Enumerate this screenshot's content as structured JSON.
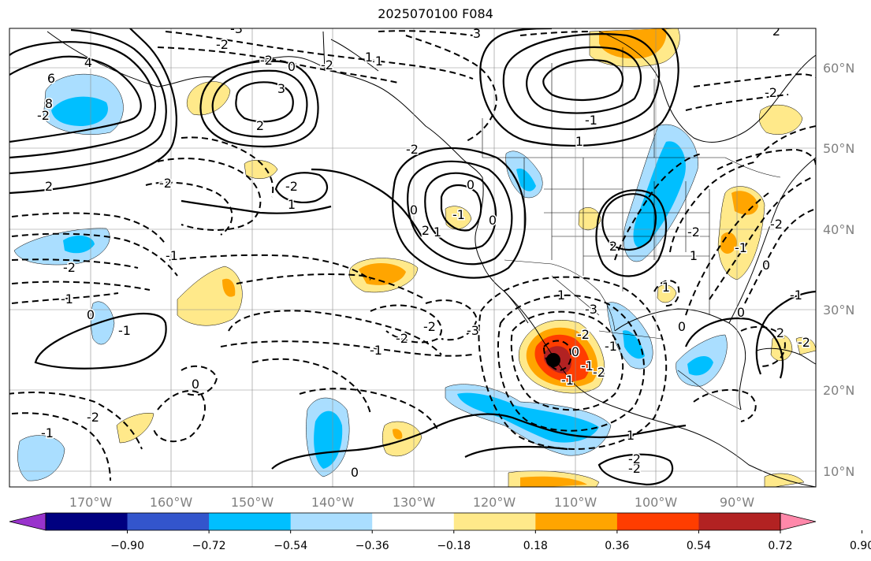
{
  "title": "2025070100 F084",
  "lon_labels": [
    "170°W",
    "160°W",
    "150°W",
    "140°W",
    "130°W",
    "120°W",
    "110°W",
    "100°W",
    "90°W"
  ],
  "lat_labels": [
    "60°N",
    "50°N",
    "40°N",
    "30°N",
    "20°N",
    "10°N"
  ],
  "colorbar": {
    "colors": [
      "#9933cc",
      "#000080",
      "#3355cc",
      "#00bfff",
      "#aadeff",
      "#ffffff",
      "#ffe98a",
      "#ffa500",
      "#ff3d00",
      "#b22222",
      "#ff88aa"
    ],
    "tick_labels": [
      "−0.90",
      "−0.72",
      "−0.54",
      "−0.36",
      "−0.18",
      "0.18",
      "0.36",
      "0.54",
      "0.72",
      "0.90"
    ]
  },
  "contour_labels": [
    "-3",
    "-2",
    "-2",
    "-2",
    "-1",
    "0",
    "1",
    "3",
    "2",
    "-2",
    "1",
    "-2",
    "-1",
    "-2",
    "-1",
    "3",
    "4",
    "6",
    "8",
    "-2",
    "2",
    "-1",
    "1",
    "-2",
    "0",
    "0",
    "1",
    "-1",
    "-2",
    "-2",
    "-1",
    "-1",
    "0",
    "0",
    "-1",
    "-2",
    "2",
    "-2",
    "-2",
    "1",
    "2",
    "0",
    "0",
    "1",
    "-2",
    "-2",
    "0",
    "-3",
    "-3",
    "0",
    "-1",
    "0",
    "-1",
    "-1",
    "-2",
    "0",
    "2",
    "1",
    "-2",
    "-1",
    "1",
    "-2",
    "2",
    "-1",
    "-2"
  ],
  "marker": "storm-center"
}
